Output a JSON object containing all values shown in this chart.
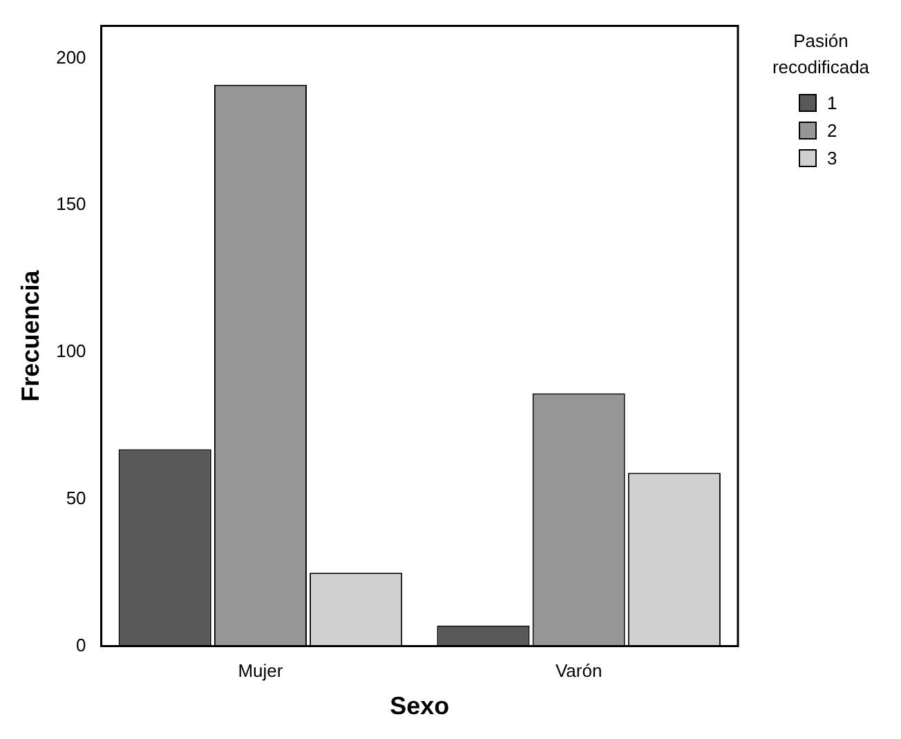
{
  "chart_data": {
    "type": "bar",
    "xlabel": "Sexo",
    "ylabel": "Frecuencia",
    "legend_title": "Pasión recodificada",
    "categories": [
      "Mujer",
      "Varón"
    ],
    "series": [
      {
        "name": "1",
        "color": "#595959",
        "values": [
          67,
          7
        ]
      },
      {
        "name": "2",
        "color": "#969696",
        "values": [
          191,
          86
        ]
      },
      {
        "name": "3",
        "color": "#d0d0d0",
        "values": [
          25,
          59
        ]
      }
    ],
    "ylim": [
      0,
      211
    ],
    "yticks": [
      0,
      50,
      100,
      150,
      200
    ],
    "grid": false,
    "legend": "top right"
  }
}
